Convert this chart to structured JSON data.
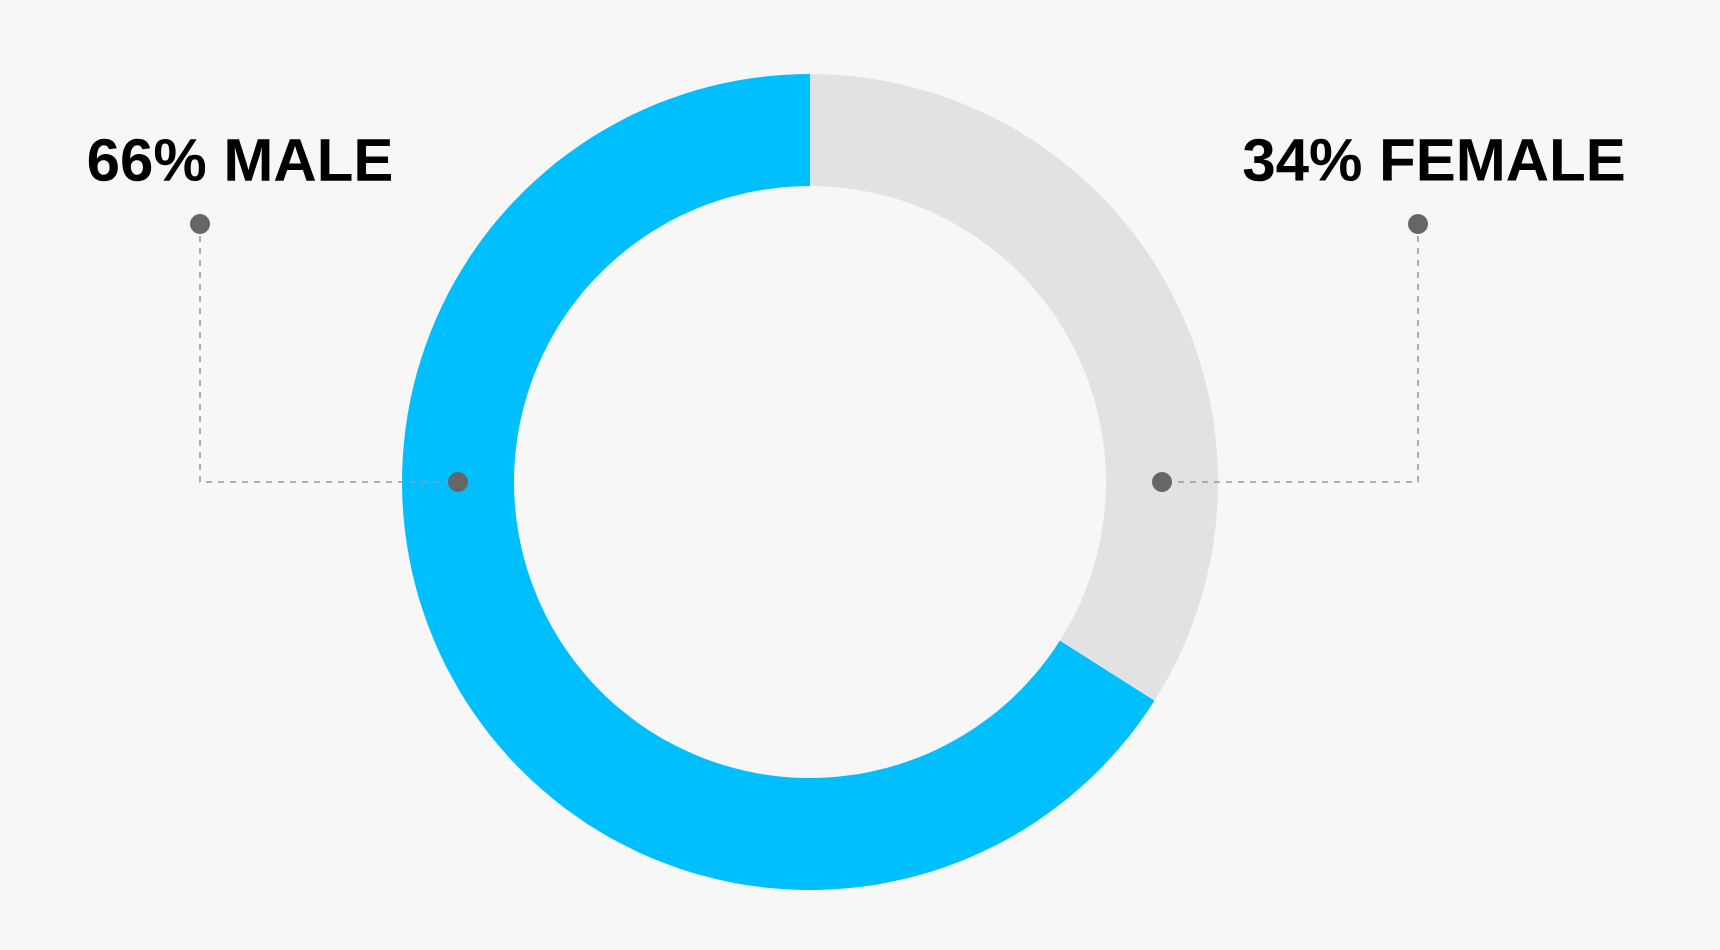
{
  "chart_data": {
    "type": "donut",
    "categories": [
      "MALE",
      "FEMALE"
    ],
    "values": [
      66,
      34
    ],
    "value_labels": [
      "66%",
      "34%"
    ],
    "colors": [
      "#00bfff",
      "#e1e2e4"
    ],
    "legend": false
  }
}
